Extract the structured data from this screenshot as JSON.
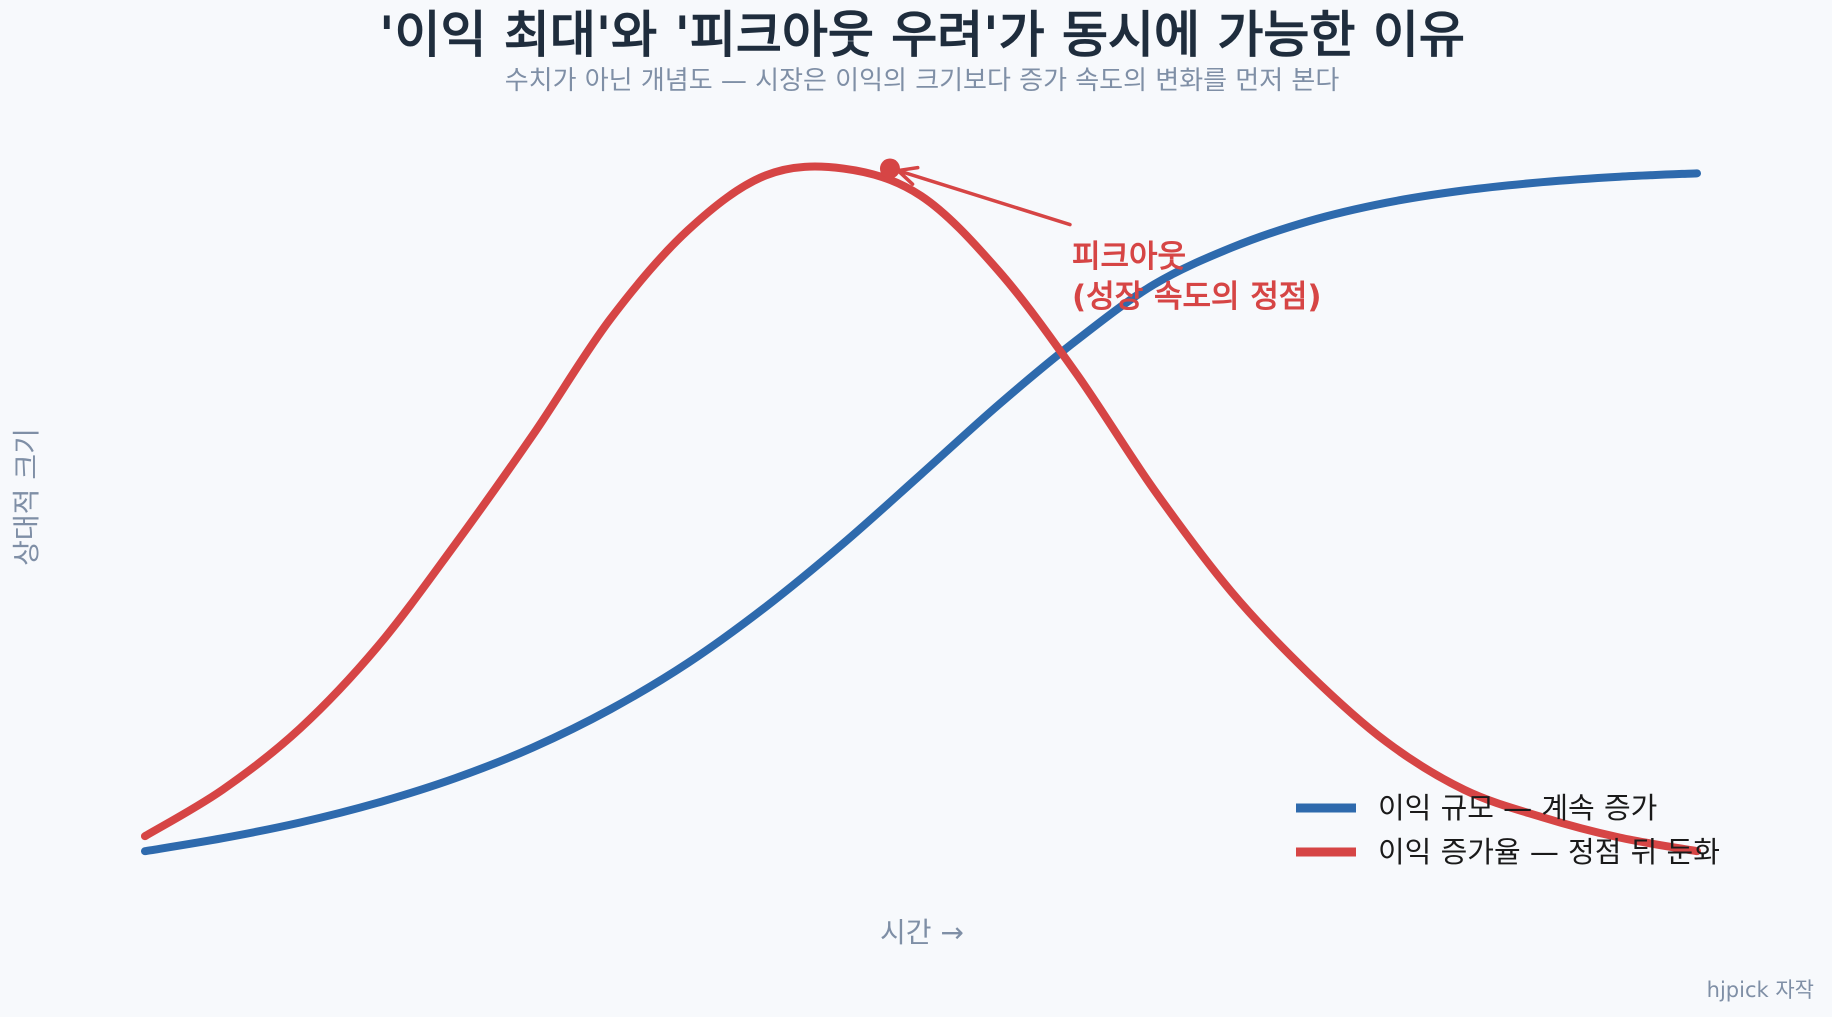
{
  "chart_data": {
    "type": "line",
    "title": "'이익 최대'와 '피크아웃 우려'가 동시에 가능한 이유",
    "subtitle": "수치가 아닌 개념도 — 시장은 이익의 크기보다 증가 속도의 변화를 먼저 본다",
    "xlabel": "시간 →",
    "ylabel": "상대적 크기",
    "grid": false,
    "legend_position": "bottom-right",
    "x": [
      0,
      0.5,
      1,
      1.5,
      2,
      2.5,
      3,
      3.5,
      4,
      4.5,
      5,
      5.5,
      6,
      6.5,
      7,
      7.5,
      8,
      8.5,
      9,
      9.5,
      10
    ],
    "series": [
      {
        "name": "이익 규모 — 계속 증가",
        "color": "#2e6aad",
        "values": [
          0.0,
          0.019,
          0.042,
          0.071,
          0.107,
          0.152,
          0.208,
          0.276,
          0.358,
          0.451,
          0.552,
          0.654,
          0.748,
          0.83,
          0.884,
          0.923,
          0.95,
          0.968,
          0.98,
          0.988,
          0.993
        ]
      },
      {
        "name": "이익 증가율 — 정점 뒤 둔화",
        "color": "#d64545",
        "values": [
          0.022,
          0.09,
          0.18,
          0.3,
          0.45,
          0.61,
          0.78,
          0.91,
          0.99,
          1.0,
          0.96,
          0.85,
          0.7,
          0.53,
          0.38,
          0.26,
          0.16,
          0.09,
          0.05,
          0.02,
          0.0
        ]
      }
    ],
    "annotations": [
      {
        "text_lines": [
          "피크아웃",
          "(성장 속도의 정점)"
        ],
        "target_series": 1,
        "target_x": 4.8,
        "target_y": 1.0,
        "color": "#d64545"
      }
    ],
    "credit": "hjpick 자작"
  }
}
